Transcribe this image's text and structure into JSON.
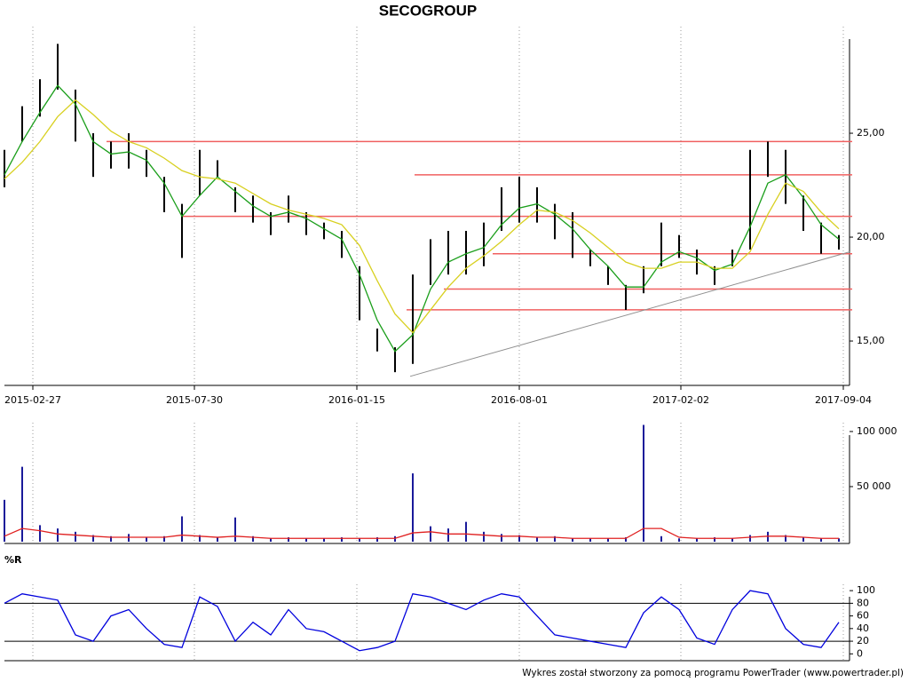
{
  "chart_data": [
    {
      "type": "hilo",
      "title": "SECOGROUP",
      "color": "#000000",
      "xlim": [
        0,
        47.5
      ],
      "xticks": [
        {
          "value": 1.6,
          "label": "2015-02-27"
        },
        {
          "value": 10.7,
          "label": "2015-07-30"
        },
        {
          "value": 19.85,
          "label": "2016-01-15"
        },
        {
          "value": 29.0,
          "label": "2016-08-01"
        },
        {
          "value": 38.1,
          "label": "2017-02-02"
        },
        {
          "value": 47.25,
          "label": "2017-09-04"
        }
      ],
      "ylim": [
        12.95,
        30.13
      ],
      "yticks": [
        {
          "value": 15,
          "label": "15,00"
        },
        {
          "value": 20,
          "label": "20,00"
        },
        {
          "value": 25,
          "label": "25,00"
        }
      ],
      "grid": "x",
      "low": [
        22.4,
        24.6,
        25.8,
        27.1,
        24.6,
        22.9,
        23.3,
        23.3,
        22.9,
        21.2,
        19.0,
        22.0,
        22.9,
        21.2,
        20.7,
        20.1,
        20.7,
        20.1,
        19.9,
        19.0,
        16.0,
        14.5,
        13.5,
        13.9,
        17.7,
        18.2,
        18.2,
        18.6,
        20.3,
        20.7,
        20.7,
        19.9,
        19.0,
        18.6,
        17.7,
        16.5,
        17.3,
        18.6,
        19.0,
        18.2,
        17.7,
        18.6,
        19.4,
        22.9,
        21.6,
        20.3,
        19.2,
        19.4
      ],
      "high": [
        24.2,
        26.3,
        27.6,
        29.3,
        27.1,
        25.0,
        24.6,
        25.0,
        24.2,
        22.9,
        21.6,
        24.2,
        23.7,
        22.4,
        22.0,
        21.2,
        22.0,
        21.2,
        20.7,
        20.3,
        18.6,
        15.6,
        14.7,
        18.2,
        19.9,
        20.3,
        20.3,
        20.7,
        22.4,
        22.9,
        22.4,
        21.6,
        21.2,
        19.4,
        18.6,
        17.7,
        18.6,
        20.7,
        20.1,
        19.4,
        18.6,
        19.4,
        24.2,
        24.6,
        24.2,
        22.0,
        20.7,
        20.1
      ],
      "lines": [
        {
          "color": "#1a9e1a",
          "values": [
            23.0,
            24.6,
            26.0,
            27.3,
            26.4,
            24.6,
            24.0,
            24.1,
            23.7,
            22.6,
            21.0,
            22.0,
            22.9,
            22.2,
            21.5,
            21.0,
            21.2,
            20.9,
            20.4,
            19.9,
            18.2,
            16.0,
            14.5,
            15.3,
            17.5,
            18.8,
            19.2,
            19.5,
            20.6,
            21.4,
            21.6,
            21.1,
            20.4,
            19.4,
            18.6,
            17.6,
            17.6,
            18.8,
            19.3,
            19.0,
            18.4,
            18.7,
            20.5,
            22.6,
            23.0,
            21.9,
            20.6,
            19.9
          ]
        },
        {
          "color": "#d8d020",
          "values": [
            22.8,
            23.6,
            24.6,
            25.8,
            26.6,
            25.9,
            25.1,
            24.6,
            24.3,
            23.8,
            23.2,
            22.9,
            22.8,
            22.6,
            22.1,
            21.6,
            21.3,
            21.1,
            20.9,
            20.6,
            19.6,
            17.9,
            16.3,
            15.4,
            16.5,
            17.6,
            18.5,
            19.1,
            19.8,
            20.6,
            21.3,
            21.2,
            20.8,
            20.2,
            19.5,
            18.8,
            18.5,
            18.5,
            18.8,
            18.8,
            18.5,
            18.5,
            19.3,
            21.1,
            22.6,
            22.2,
            21.2,
            20.4
          ]
        }
      ],
      "levels": [
        {
          "value": 24.6,
          "from": 5.75,
          "color": "#f06060"
        },
        {
          "value": 23.0,
          "from": 23.1,
          "color": "#f06060"
        },
        {
          "value": 21.0,
          "from": 10.0,
          "color": "#f06060"
        },
        {
          "value": 19.2,
          "from": 27.5,
          "color": "#f06060"
        },
        {
          "value": 17.5,
          "from": 24.75,
          "color": "#f06060"
        },
        {
          "value": 16.5,
          "from": 22.65,
          "color": "#f06060"
        }
      ],
      "trend": {
        "color": "#909090",
        "x": [
          22.85,
          47.65
        ],
        "y": [
          13.3,
          19.3
        ]
      }
    },
    {
      "type": "bar",
      "color": "#1a1a9a",
      "xlim": [
        0,
        47.5
      ],
      "ylim": [
        0,
        108000
      ],
      "yticks": [
        {
          "value": 50000,
          "label": "50 000"
        },
        {
          "value": 100000,
          "label": "100 000"
        }
      ],
      "grid": "x",
      "values": [
        38000,
        68000,
        15000,
        12000,
        9000,
        6000,
        5000,
        7000,
        4000,
        5000,
        23000,
        6000,
        4000,
        22000,
        5000,
        3000,
        4000,
        3000,
        3000,
        4000,
        3000,
        4000,
        5000,
        62000,
        14000,
        12000,
        18000,
        9000,
        7000,
        6000,
        4000,
        5000,
        3000,
        3000,
        3000,
        4000,
        106000,
        5000,
        3000,
        3000,
        4000,
        3000,
        6000,
        9000,
        6000,
        4000,
        3000,
        3000
      ],
      "avg": {
        "color": "#e02020",
        "values": [
          5000,
          12000,
          10000,
          7000,
          6000,
          5000,
          4000,
          4000,
          4000,
          4000,
          6000,
          5000,
          4000,
          5000,
          4000,
          3000,
          3000,
          3000,
          3000,
          3000,
          3000,
          3000,
          3000,
          8000,
          9000,
          7000,
          7000,
          6000,
          5000,
          5000,
          4000,
          4000,
          3000,
          3000,
          3000,
          3000,
          12000,
          12000,
          4000,
          3000,
          3000,
          3000,
          4000,
          5000,
          5000,
          4000,
          3000,
          3000
        ]
      }
    },
    {
      "type": "line",
      "title": "%R",
      "color": "#0000dd",
      "xlim": [
        0,
        47.5
      ],
      "ylim": [
        -8,
        110
      ],
      "yticks": [
        0,
        20,
        40,
        60,
        80,
        100
      ],
      "grid": "x",
      "bands": [
        20,
        80
      ],
      "values": [
        80,
        95,
        90,
        85,
        30,
        20,
        60,
        70,
        40,
        15,
        10,
        90,
        75,
        20,
        50,
        30,
        70,
        40,
        35,
        20,
        5,
        10,
        20,
        95,
        90,
        80,
        70,
        85,
        95,
        90,
        60,
        30,
        25,
        20,
        15,
        10,
        65,
        90,
        70,
        25,
        15,
        70,
        100,
        95,
        40,
        15,
        10,
        50
      ]
    }
  ],
  "footer": "Wykres został stworzony za pomocą programu PowerTrader (www.powertrader.pl)"
}
